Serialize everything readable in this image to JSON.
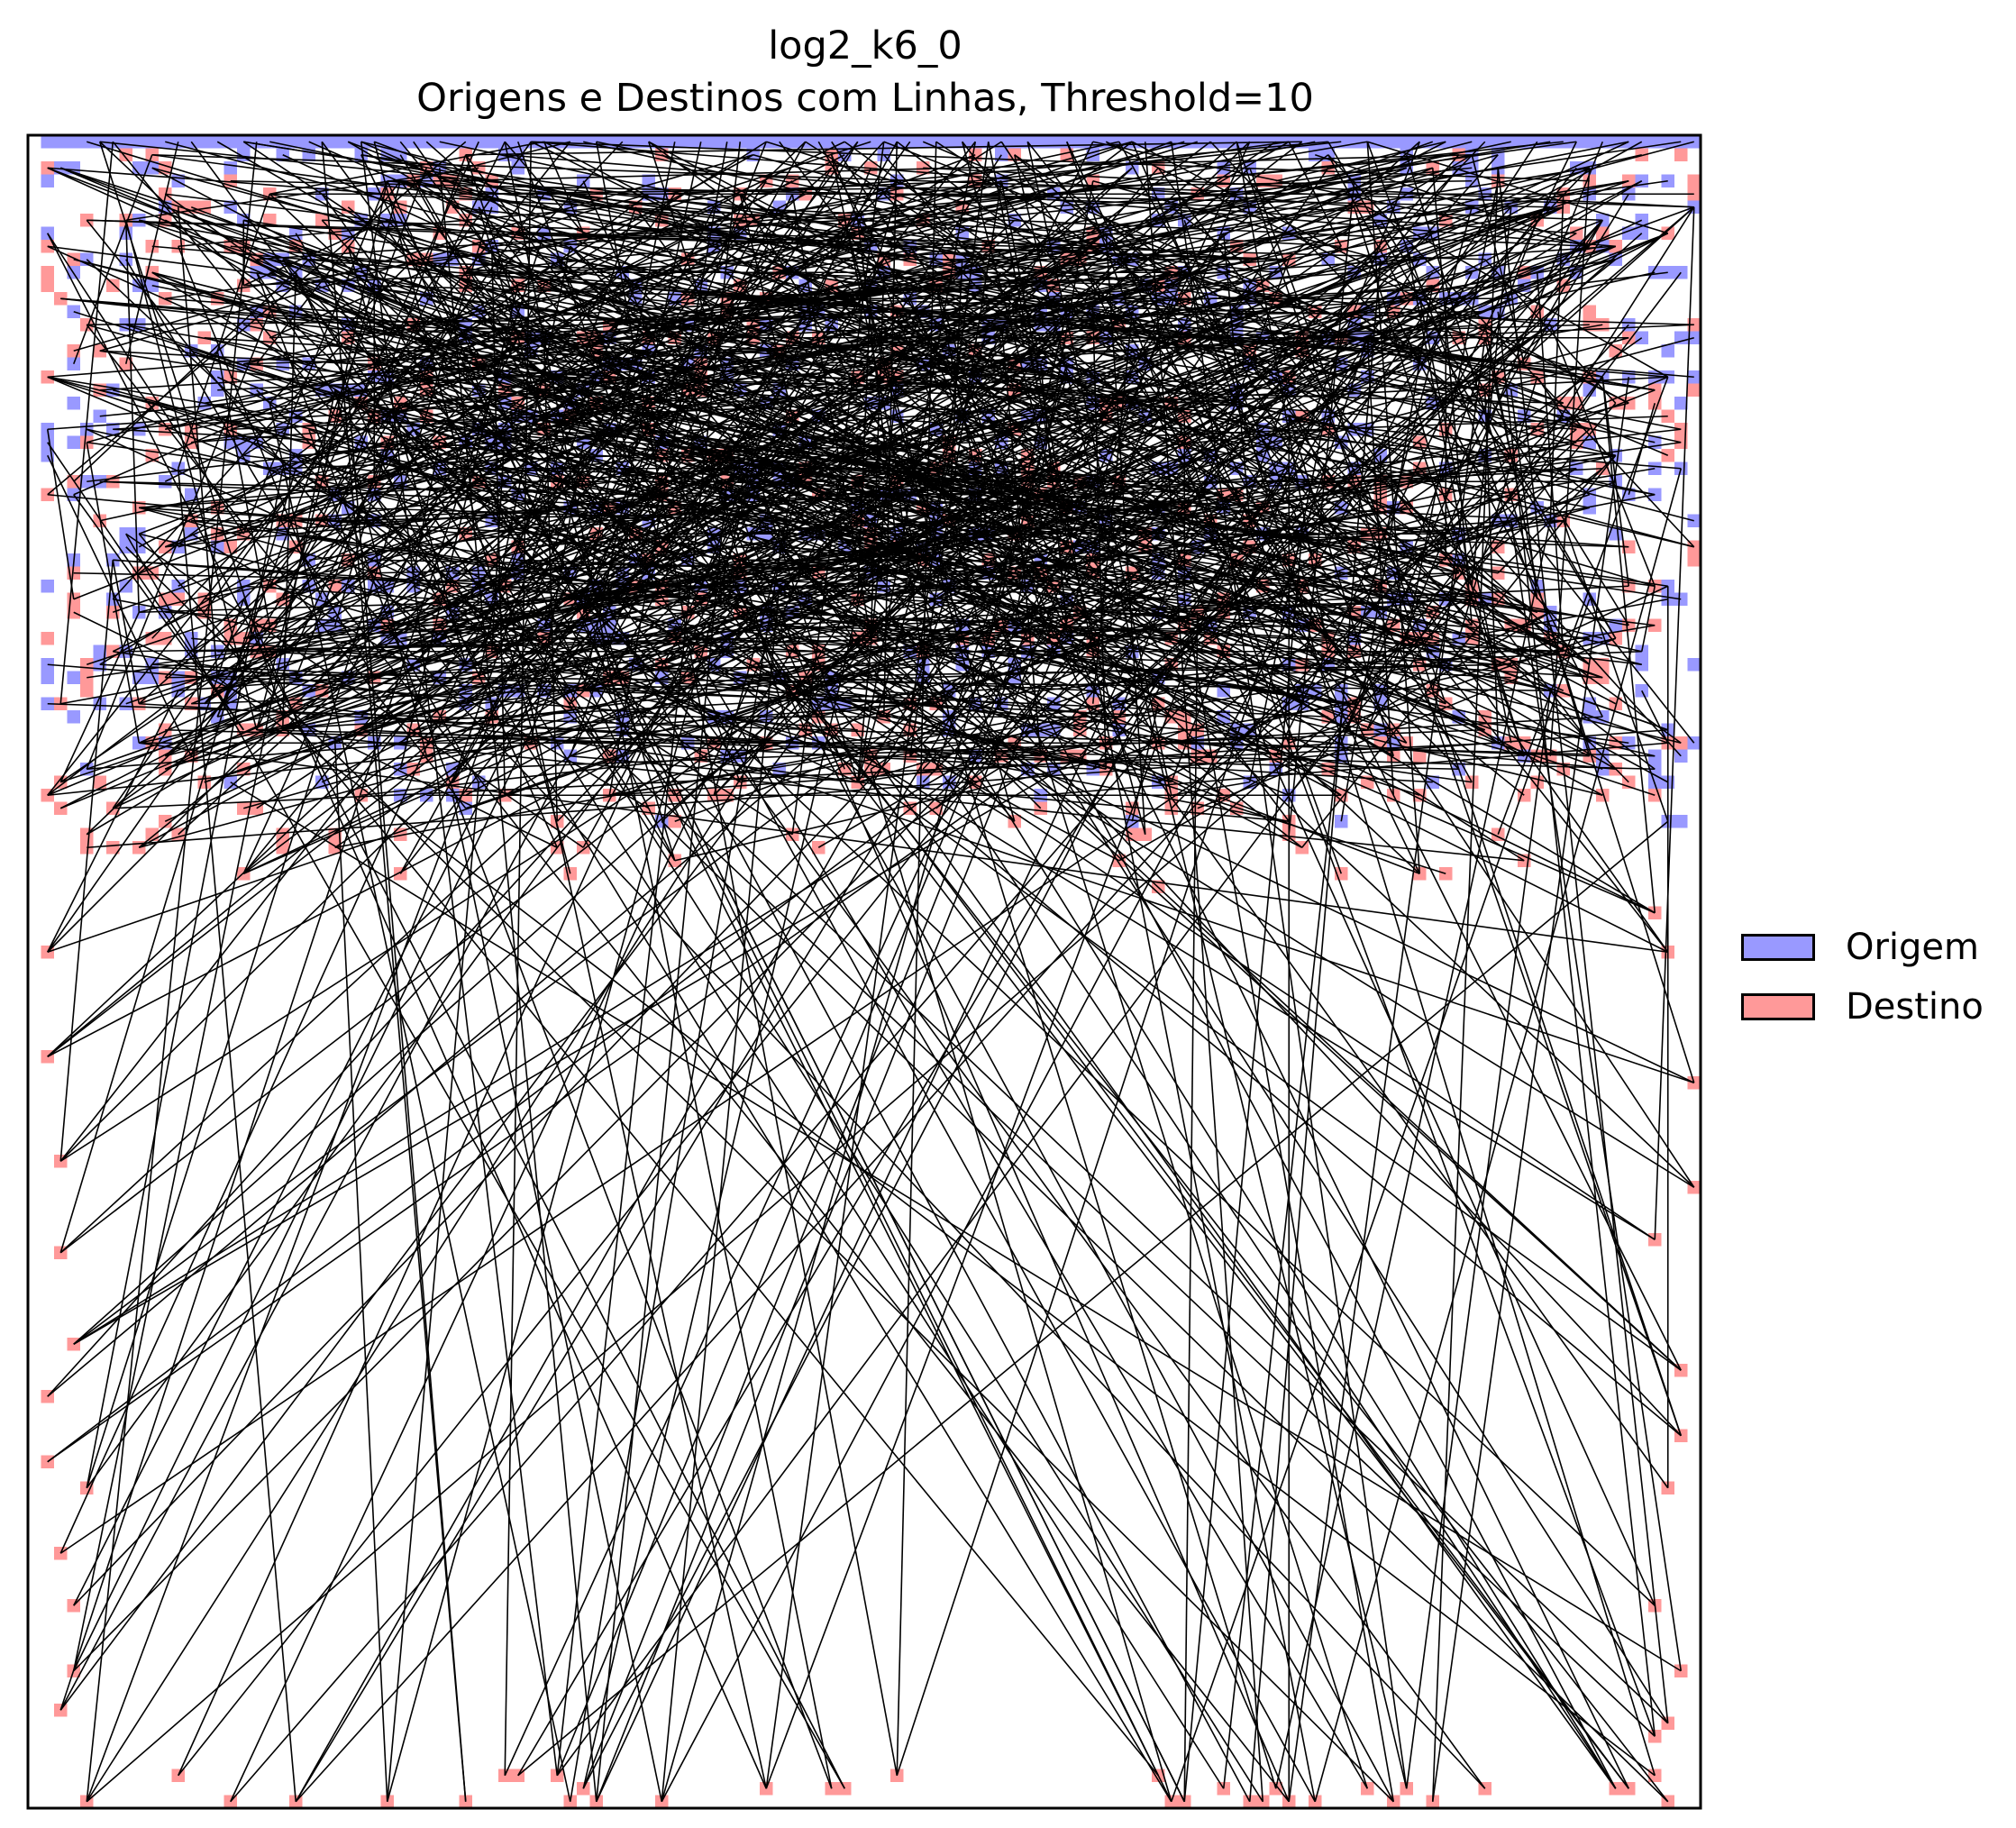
{
  "chart_data": {
    "type": "scatter",
    "title": "log2_k6_0",
    "subtitle": "Origens e Destinos com Linhas, Threshold=10",
    "xlabel": "",
    "ylabel": "",
    "axes": "hidden",
    "grid": false,
    "legend_position": "center-right",
    "legend": [
      {
        "label": "Origem",
        "color": "#9999ff"
      },
      {
        "label": "Destino",
        "color": "#ff9999"
      }
    ],
    "line_color": "#000000",
    "grid_size": 128,
    "series": [
      {
        "name": "Origem",
        "description_of_points": "cells along boundary of upper region",
        "region": {
          "x_min": 1,
          "x_max": 127,
          "y_min": 1,
          "y_max": 52
        }
      },
      {
        "name": "Destino",
        "region_main": {
          "x_min": 1,
          "x_max": 127,
          "y_min": 1,
          "y_max": 58
        },
        "lower_points": [
          [
            4,
            127
          ],
          [
            11,
            125
          ],
          [
            15,
            127
          ],
          [
            20,
            128
          ],
          [
            27,
            127
          ],
          [
            33,
            127
          ],
          [
            36,
            125
          ],
          [
            37,
            125
          ],
          [
            40,
            125
          ],
          [
            41,
            127
          ],
          [
            42,
            126
          ],
          [
            43,
            128
          ],
          [
            48,
            127
          ],
          [
            56,
            126
          ],
          [
            61,
            126
          ],
          [
            62,
            126
          ],
          [
            66,
            125
          ],
          [
            86,
            125
          ],
          [
            87,
            127
          ],
          [
            88,
            128
          ],
          [
            91,
            126
          ],
          [
            93,
            128
          ],
          [
            94,
            128
          ],
          [
            95,
            126
          ],
          [
            96,
            128
          ],
          [
            98,
            129
          ],
          [
            102,
            126
          ],
          [
            104,
            127
          ],
          [
            105,
            126
          ],
          [
            107,
            128
          ],
          [
            111,
            126
          ],
          [
            121,
            126
          ],
          [
            122,
            126
          ],
          [
            124,
            125
          ],
          [
            125,
            128
          ],
          [
            1,
            62
          ],
          [
            1,
            70
          ],
          [
            2,
            78
          ],
          [
            2,
            85
          ],
          [
            1,
            96
          ],
          [
            3,
            92
          ],
          [
            1,
            101
          ],
          [
            2,
            108
          ],
          [
            3,
            117
          ],
          [
            2,
            120
          ],
          [
            4,
            103
          ],
          [
            3,
            112
          ],
          [
            124,
            59
          ],
          [
            125,
            62
          ],
          [
            127,
            72
          ],
          [
            124,
            84
          ],
          [
            126,
            94
          ],
          [
            125,
            103
          ],
          [
            124,
            112
          ],
          [
            126,
            117
          ],
          [
            125,
            121
          ],
          [
            124,
            122
          ],
          [
            127,
            80
          ],
          [
            126,
            99
          ]
        ]
      }
    ]
  }
}
